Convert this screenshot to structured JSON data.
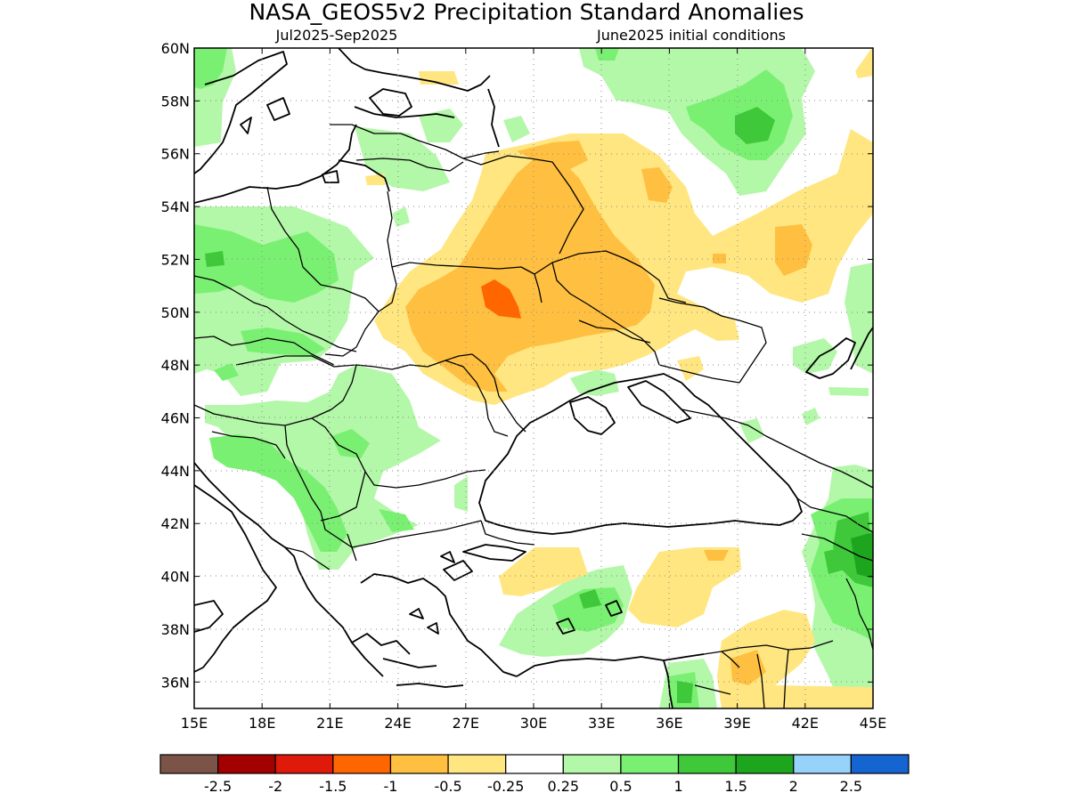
{
  "title": "NASA_GEOS5v2 Precipitation Standard Anomalies",
  "subtitle_left": "Jul2025-Sep2025",
  "subtitle_right": "June2025 initial conditions",
  "longitude_ticks": [
    "15E",
    "18E",
    "21E",
    "24E",
    "27E",
    "30E",
    "33E",
    "36E",
    "39E",
    "42E",
    "45E"
  ],
  "latitude_ticks": [
    "36N",
    "38N",
    "40N",
    "42N",
    "44N",
    "46N",
    "48N",
    "50N",
    "52N",
    "54N",
    "56N",
    "58N",
    "60N"
  ],
  "map_extent": {
    "lon": [
      15,
      45
    ],
    "lat": [
      35,
      60
    ]
  },
  "grid": "dotted",
  "legend": {
    "position": "bottom",
    "colors": [
      "#7b5447",
      "#a30000",
      "#e01a0a",
      "#ff6600",
      "#ffbf40",
      "#ffe680",
      "#ffffff",
      "#b3f7a8",
      "#7af073",
      "#3ec83a",
      "#1ea51e",
      "#96d2fa",
      "#1464d2"
    ],
    "labels": [
      "-2.5",
      "-2",
      "-1.5",
      "-1",
      "-0.5",
      "-0.25",
      "0.25",
      "0.5",
      "1",
      "1.5",
      "2",
      "2.5"
    ]
  },
  "anomaly_colors": {
    "dry_light": "#ffe680",
    "dry_moderate": "#ffbf40",
    "dry_strong": "#ff6600",
    "wet_light": "#b3f7a8",
    "wet_moderate": "#7af073",
    "wet_strong": "#3ec83a",
    "wet_very_strong": "#1ea51e"
  }
}
